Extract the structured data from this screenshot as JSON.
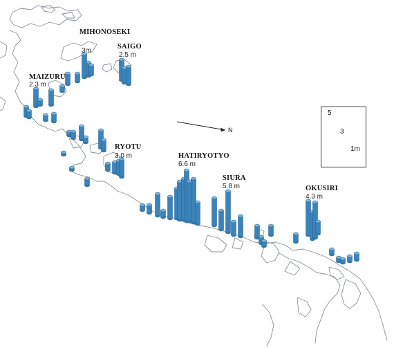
{
  "map": {
    "north_symbol": "N",
    "bar_color": "#3b83b8",
    "bar_top_color": "#7fb4da",
    "bar_edge_color": "#1f5f8f",
    "coast_color": "#8a8f96"
  },
  "sites": [
    {
      "id": "mihonoseki",
      "name": "MIHONOSEKI",
      "value_label": "3m"
    },
    {
      "id": "saigo",
      "name": "SAIGO",
      "value_label": "2.5 m"
    },
    {
      "id": "maizuru",
      "name": "MAIZURU",
      "value_label": "2.3 m"
    },
    {
      "id": "ryotu",
      "name": "RYOTU",
      "value_label": "3.0 m"
    },
    {
      "id": "hatiryotyo",
      "name": "HATIRYOTYO",
      "value_label": "6.6 m"
    },
    {
      "id": "siura",
      "name": "SIURA",
      "value_label": "5.8 m"
    },
    {
      "id": "okusiri",
      "name": "OKUSIRI",
      "value_label": "4.3 m"
    }
  ],
  "legend": {
    "items": [
      {
        "label": "5",
        "value_m": 5
      },
      {
        "label": "3",
        "value_m": 3
      },
      {
        "label": "1m",
        "value_m": 1
      }
    ]
  }
}
